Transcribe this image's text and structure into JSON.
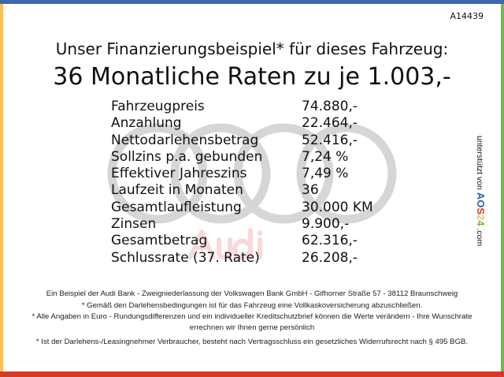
{
  "code": "A14439",
  "title": "Unser Finanzierungsbeispiel* für dieses Fahrzeug:",
  "headline": "36 Monatliche Raten zu je 1.003,-",
  "watermark": "Audi",
  "rows": [
    {
      "label": "Fahrzeugpreis",
      "value": "74.880,-"
    },
    {
      "label": "Anzahlung",
      "value": "22.464,-"
    },
    {
      "label": "Nettodarlehensbetrag",
      "value": "52.416,-"
    },
    {
      "label": "Sollzins p.a. gebunden",
      "value": "7,24 %"
    },
    {
      "label": "Effektiver Jahreszins",
      "value": "7,49 %"
    },
    {
      "label": "Laufzeit in Monaten",
      "value": "36"
    },
    {
      "label": "Gesamtlaufleistung",
      "value": "30.000 KM"
    },
    {
      "label": "Zinsen",
      "value": "9.900,-"
    },
    {
      "label": "Gesamtbetrag",
      "value": "62.316,-"
    },
    {
      "label": "Schlussrate (37. Rate)",
      "value": "26.208,-"
    }
  ],
  "footnotes": [
    "Ein Beispiel der Audi Bank - Zweigniederlassung der Volkswagen Bank GmbH - Gifhorner Straße 57 - 38112 Braunschweig",
    "* Gemäß den Darlehensbedingungen ist für das Fahrzeug eine Vollkaskoversicherung abzuschließen.",
    "* Alle Angaben in Euro - Rundungsdifferenzen und ein individueller Kreditschutzbrief können die Werte verändern - Ihre Wunschrate errechnen wir Ihnen gerne persönlich",
    "* Ist der Darlehens-/Leasingnehmer Verbraucher, besteht nach Vertragsschluss ein gesetzliches Widerrufsrecht nach § 495 BGB."
  ],
  "side": {
    "prefix": "unterstützt von",
    "logo": [
      "A",
      "O",
      "S",
      "2",
      "4"
    ],
    "suffix": ".com",
    "logo_colors": [
      "#2f5fae",
      "#2f5fae",
      "#d63a26",
      "#f5c35a",
      "#6cbd45"
    ]
  },
  "colors": {
    "top": "#3d67b0",
    "left": "#f5c35a",
    "right": "#6cbd45",
    "bottom": "#d63a26"
  }
}
